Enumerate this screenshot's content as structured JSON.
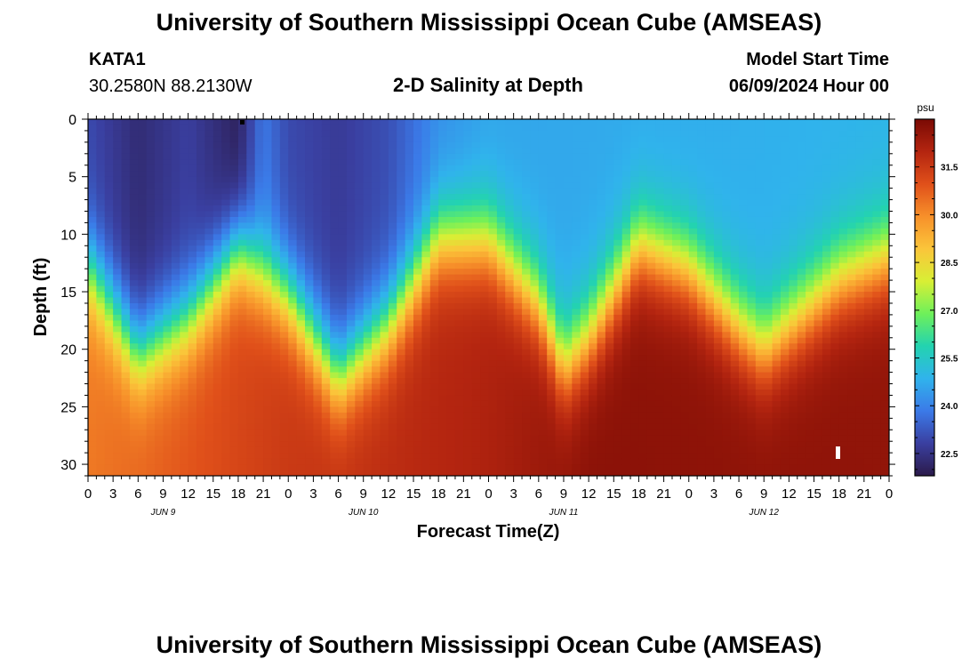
{
  "header": {
    "title": "University of Southern Mississippi Ocean Cube (AMSEAS)",
    "station_id": "KATA1",
    "coords": "30.2580N  88.2130W",
    "chart_title": "2-D Salinity at Depth",
    "model_start_label": "Model Start Time",
    "model_start_time": "06/09/2024 Hour 00"
  },
  "footer": {
    "title": "University of Southern Mississippi Ocean Cube (AMSEAS)"
  },
  "chart_data": {
    "type": "heatmap",
    "title": "2-D Salinity at Depth",
    "xlabel": "Forecast Time(Z)",
    "ylabel": "Depth (ft)",
    "x_ticks": [
      "0",
      "3",
      "6",
      "9",
      "12",
      "15",
      "18",
      "21",
      "0",
      "3",
      "6",
      "9",
      "12",
      "15",
      "18",
      "21",
      "0",
      "3",
      "6",
      "9",
      "12",
      "15",
      "18",
      "21",
      "0",
      "3",
      "6",
      "9",
      "12",
      "15",
      "18",
      "21",
      "0"
    ],
    "x_range_hours": [
      0,
      96
    ],
    "day_labels": [
      {
        "label": "JUN 9",
        "hour": 9
      },
      {
        "label": "JUN 10",
        "hour": 33
      },
      {
        "label": "JUN 11",
        "hour": 57
      },
      {
        "label": "JUN 12",
        "hour": 81
      }
    ],
    "y_ticks": [
      0,
      5,
      10,
      15,
      20,
      25,
      30
    ],
    "ylim_ft": [
      0,
      31
    ],
    "y_inverted": true,
    "colorbar": {
      "unit": "psu",
      "ticks": [
        "31.5",
        "30.0",
        "28.5",
        "27.0",
        "25.5",
        "24.0",
        "22.5"
      ],
      "range": [
        21.8,
        33.0
      ],
      "colors": [
        "#2b1a4a",
        "#3a3fa0",
        "#3b7ae8",
        "#30b3ec",
        "#23d3b0",
        "#6ef05a",
        "#d8ef35",
        "#fbc53a",
        "#f7902a",
        "#e0501a",
        "#b42510",
        "#7a0a04"
      ]
    },
    "halocline_depth_ft": [
      {
        "hour": 0,
        "depth": 13.0
      },
      {
        "hour": 6,
        "depth": 20.5
      },
      {
        "hour": 12,
        "depth": 17.5
      },
      {
        "hour": 18,
        "depth": 11.5
      },
      {
        "hour": 24,
        "depth": 15.5
      },
      {
        "hour": 30,
        "depth": 22.5
      },
      {
        "hour": 36,
        "depth": 18.0
      },
      {
        "hour": 42,
        "depth": 10.5
      },
      {
        "hour": 48,
        "depth": 10.5
      },
      {
        "hour": 54,
        "depth": 16.0
      },
      {
        "hour": 57,
        "depth": 21.5
      },
      {
        "hour": 60,
        "depth": 19.0
      },
      {
        "hour": 66,
        "depth": 11.0
      },
      {
        "hour": 72,
        "depth": 13.0
      },
      {
        "hour": 78,
        "depth": 18.0
      },
      {
        "hour": 81,
        "depth": 20.0
      },
      {
        "hour": 84,
        "depth": 18.0
      },
      {
        "hour": 90,
        "depth": 14.0
      },
      {
        "hour": 96,
        "depth": 12.0
      }
    ],
    "surface_salinity_psu": [
      {
        "hour": 0,
        "value": 23.0
      },
      {
        "hour": 6,
        "value": 22.3
      },
      {
        "hour": 12,
        "value": 22.8
      },
      {
        "hour": 18,
        "value": 22.0
      },
      {
        "hour": 21,
        "value": 23.8
      },
      {
        "hour": 24,
        "value": 23.0
      },
      {
        "hour": 30,
        "value": 22.7
      },
      {
        "hour": 36,
        "value": 23.1
      },
      {
        "hour": 42,
        "value": 24.2
      },
      {
        "hour": 48,
        "value": 24.6
      },
      {
        "hour": 96,
        "value": 24.9
      }
    ],
    "bottom_salinity_psu": [
      {
        "hour": 0,
        "value": 30.3
      },
      {
        "hour": 24,
        "value": 31.5
      },
      {
        "hour": 48,
        "value": 32.1
      },
      {
        "hour": 60,
        "value": 32.7
      },
      {
        "hour": 96,
        "value": 32.6
      }
    ]
  }
}
